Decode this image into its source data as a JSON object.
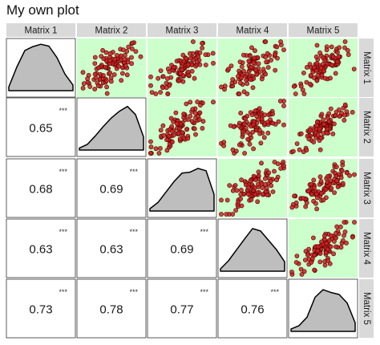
{
  "title": "My own plot",
  "chart_data": {
    "type": "scatter",
    "variables": [
      "Matrix 1",
      "Matrix 2",
      "Matrix 3",
      "Matrix 4",
      "Matrix 5"
    ],
    "correlations": [
      {
        "row": 2,
        "col": 1,
        "value": "0.65",
        "stars": "***"
      },
      {
        "row": 3,
        "col": 1,
        "value": "0.68",
        "stars": "***"
      },
      {
        "row": 3,
        "col": 2,
        "value": "0.69",
        "stars": "***"
      },
      {
        "row": 4,
        "col": 1,
        "value": "0.63",
        "stars": "***"
      },
      {
        "row": 4,
        "col": 2,
        "value": "0.63",
        "stars": "***"
      },
      {
        "row": 4,
        "col": 3,
        "value": "0.69",
        "stars": "***"
      },
      {
        "row": 5,
        "col": 1,
        "value": "0.73",
        "stars": "***"
      },
      {
        "row": 5,
        "col": 2,
        "value": "0.78",
        "stars": "***"
      },
      {
        "row": 5,
        "col": 3,
        "value": "0.77",
        "stars": "***"
      },
      {
        "row": 5,
        "col": 4,
        "value": "0.76",
        "stars": "***"
      }
    ],
    "upper_panel_background": "#ccffcc",
    "point_fill": "#cc2222",
    "point_stroke": "#4a0000",
    "density_fill": "#bebebe",
    "strip_background": "#d9d9d9",
    "grid": false
  }
}
